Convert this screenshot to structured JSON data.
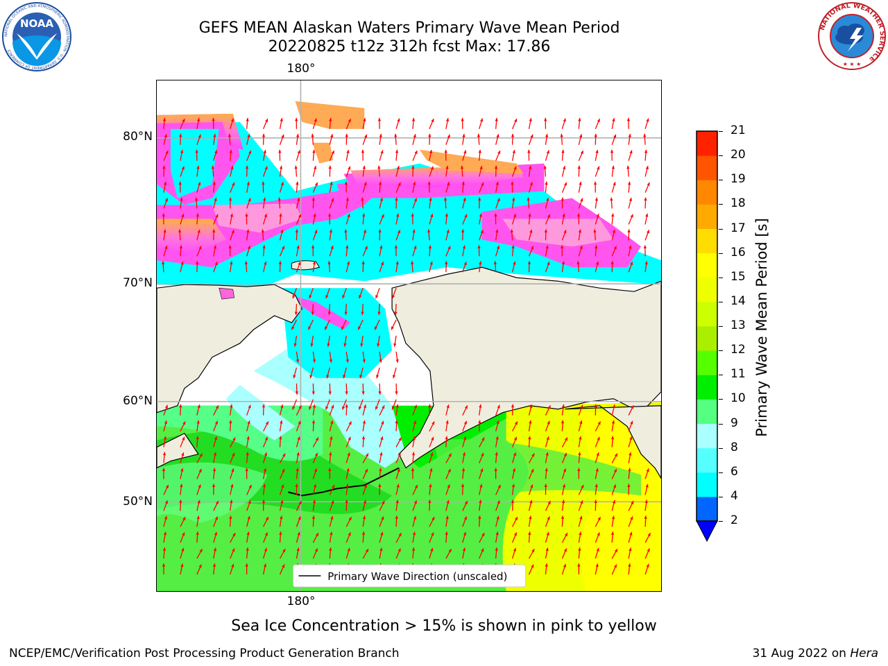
{
  "header": {
    "title_line1": "GEFS MEAN Alaskan Waters Primary Wave Mean Period",
    "title_line2": "20220825 t12z 312h fcst   Max: 17.86"
  },
  "logos": {
    "noaa_text": "NOAA",
    "noaa_ring_text": "NATIONAL OCEANIC AND ATMOSPHERIC ADMINISTRATION · U.S. DEPARTMENT OF COMMERCE",
    "nws_ring_text": "NATIONAL WEATHER SERVICE"
  },
  "map": {
    "lon_label_top": "180°",
    "lon_label_bottom": "180°",
    "lat_labels": [
      "80°N",
      "70°N",
      "60°N",
      "50°N"
    ],
    "legend_text": "Primary Wave Direction (unscaled)",
    "arrow_color": "#ff0000",
    "land_color": "#efedde"
  },
  "colorbar": {
    "label": "Primary Wave Mean Period [s]",
    "ticks": [
      "2",
      "4",
      "6",
      "8",
      "9",
      "10",
      "11",
      "12",
      "13",
      "14",
      "15",
      "16",
      "17",
      "18",
      "19",
      "20",
      "21"
    ],
    "colors": [
      "#0066ff",
      "#00ffff",
      "#55ffff",
      "#aaffff",
      "#55ff80",
      "#00ee00",
      "#55ff00",
      "#aaee00",
      "#ccff00",
      "#eeff00",
      "#ffff00",
      "#ffdd00",
      "#ffaa00",
      "#ff8800",
      "#ff5500",
      "#ff2200"
    ],
    "extend_color": "#0000ff"
  },
  "notes": {
    "ice_note": "Sea Ice Concentration > 15% is shown in pink to yellow"
  },
  "footer": {
    "left": "NCEP/EMC/Verification Post Processing Product Generation Branch",
    "right_prefix": "31 Aug 2022 on ",
    "right_host": "Hera"
  }
}
